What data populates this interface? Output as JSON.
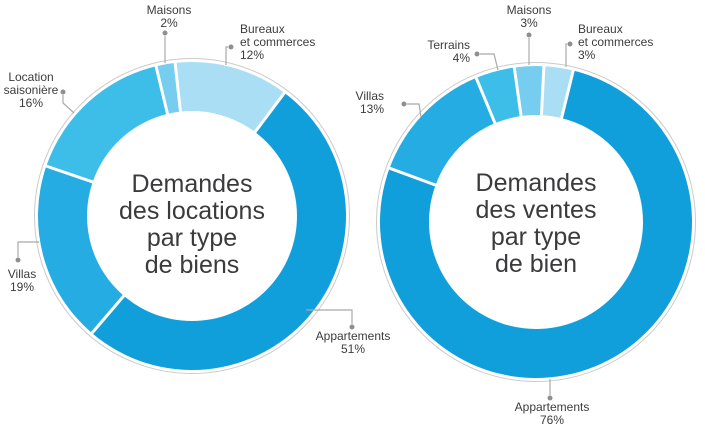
{
  "page": {
    "background": "#ffffff"
  },
  "styles": {
    "leader_line_color": "#A9A9A9",
    "leader_dot_color": "#8F8F8F",
    "outline_circle_color": "#CBCBCB",
    "divider_color": "#FFFFFF",
    "text_color": "#3B3B3D"
  },
  "chart_data": [
    {
      "type": "pie",
      "subtype": "donut",
      "title": "Demandes des locations par type de biens",
      "title_lines": [
        "Demandes",
        "des locations",
        "par type",
        "de biens"
      ],
      "unit": "%",
      "legend_position": "callouts",
      "segments": [
        {
          "label": "Maisons",
          "value": 2,
          "display": "2%",
          "color": "#77CDEF"
        },
        {
          "label": "Bureaux et commerces",
          "value": 12,
          "display": "12%",
          "color": "#A9DEF5"
        },
        {
          "label": "Appartements",
          "value": 51,
          "display": "51%",
          "color": "#119FDB"
        },
        {
          "label": "Villas",
          "value": 19,
          "display": "19%",
          "color": "#25ACE2"
        },
        {
          "label": "Location saisonière",
          "value": 16,
          "display": "16%",
          "color": "#3CBEE9"
        }
      ]
    },
    {
      "type": "pie",
      "subtype": "donut",
      "title": "Demandes des ventes par type de bien",
      "title_lines": [
        "Demandes",
        "des ventes",
        "par type",
        "de bien"
      ],
      "unit": "%",
      "legend_position": "callouts",
      "segments": [
        {
          "label": "Maisons",
          "value": 3,
          "display": "3%",
          "color": "#77CDEF"
        },
        {
          "label": "Bureaux et commerces",
          "value": 3,
          "display": "3%",
          "color": "#A9DEF5"
        },
        {
          "label": "Appartements",
          "value": 76,
          "display": "76%",
          "color": "#119FDB"
        },
        {
          "label": "Villas",
          "value": 13,
          "display": "13%",
          "color": "#25ACE2"
        },
        {
          "label": "Terrains",
          "value": 4,
          "display": "4%",
          "color": "#3CBEE9"
        }
      ]
    }
  ]
}
